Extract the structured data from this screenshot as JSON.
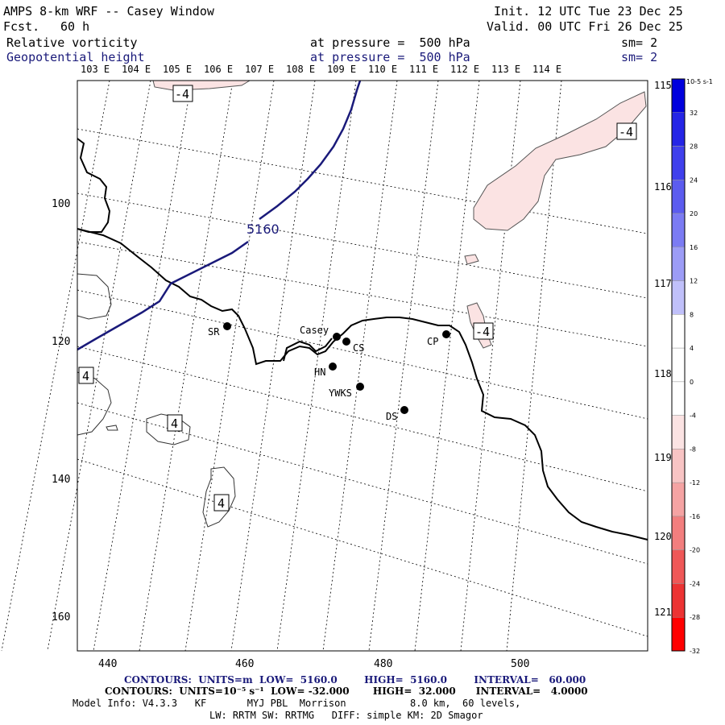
{
  "header": {
    "title": "AMPS 8-km WRF -- Casey Window",
    "fcst_label": "Fcst.",
    "fcst_value": "60 h",
    "init": "Init. 12 UTC Tue 23 Dec 25",
    "valid": "Valid. 00 UTC Fri 26 Dec 25",
    "field1_name": "Relative vorticity",
    "field1_level": "at pressure =  500 hPa",
    "field1_sm": "sm= 2",
    "field2_name": "Geopotential height",
    "field2_level": "at pressure =  500 hPa",
    "field2_sm": "sm= 2"
  },
  "map": {
    "lon_top_labels": [
      "103 E",
      "104 E",
      "105 E",
      "106 E",
      "107 E",
      "108 E",
      "109 E",
      "110 E",
      "111 E",
      "112 E",
      "113 E",
      "114 E"
    ],
    "lat_right_labels": [
      "115 E",
      "116 E",
      "117 E",
      "118 E",
      "119 E",
      "120 E",
      "121 E"
    ],
    "x_ticks": [
      "440",
      "460",
      "480",
      "500"
    ],
    "y_ticks": [
      "100",
      "120",
      "140",
      "160"
    ],
    "height_contour_label": "5160",
    "vort_labels": [
      "-4",
      "-4",
      "-4",
      "4",
      "4",
      "4"
    ],
    "stations": [
      {
        "code": "SR"
      },
      {
        "code": "Casey"
      },
      {
        "code": "CS"
      },
      {
        "code": "CP"
      },
      {
        "code": "HN"
      },
      {
        "code": "YWKS"
      },
      {
        "code": "DS"
      }
    ],
    "colors": {
      "height_contour": "#1a1a7a",
      "coast": "#000000",
      "neg_fill": "#fbe3e3"
    }
  },
  "colorbar": {
    "unit": "10-5 s-1",
    "labels": [
      "32",
      "28",
      "24",
      "20",
      "16",
      "12",
      "8",
      "4",
      "0",
      "-4",
      "-8",
      "-12",
      "-16",
      "-20",
      "-24",
      "-28",
      "-32"
    ],
    "colors": [
      "#0000dd",
      "#2525e6",
      "#4040ec",
      "#5c5cef",
      "#7b7bf3",
      "#9c9cf6",
      "#c0c0fa",
      "#ffffff",
      "#ffffff",
      "#ffffff",
      "#fbe3e3",
      "#f8c4c4",
      "#f5a3a3",
      "#f27e7e",
      "#ef5858",
      "#ec3333",
      "#ff0000"
    ]
  },
  "footer": {
    "line1": "CONTOURS:  UNITS=m  LOW=  5160.0        HIGH=  5160.0        INTERVAL=   60.000",
    "line2": "CONTOURS:  UNITS=10⁻⁵ s⁻¹  LOW= -32.000       HIGH=  32.000      INTERVAL=   4.0000",
    "line3": "Model Info: V4.3.3   KF       MYJ PBL  Morrison           8.0 km,  60 levels,",
    "line4": "LW: RRTM SW: RRTMG   DIFF: simple KM: 2D Smagor"
  }
}
